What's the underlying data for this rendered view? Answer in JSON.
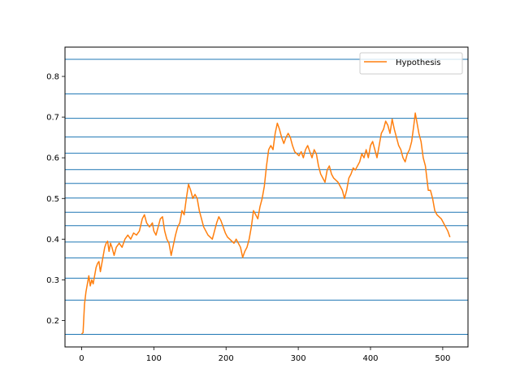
{
  "chart_data": {
    "type": "line",
    "title": "",
    "xlabel": "",
    "ylabel": "",
    "xlim": [
      -23,
      535
    ],
    "ylim": [
      0.135,
      0.872
    ],
    "x_ticks": [
      0,
      100,
      200,
      300,
      400,
      500
    ],
    "x_tick_labels": [
      "0",
      "100",
      "200",
      "300",
      "400",
      "500"
    ],
    "y_ticks": [
      0.2,
      0.3,
      0.4,
      0.5,
      0.6,
      0.7,
      0.8
    ],
    "y_tick_labels": [
      "0.2",
      "0.3",
      "0.4",
      "0.5",
      "0.6",
      "0.7",
      "0.8"
    ],
    "hlines": {
      "color": "#1f77b4",
      "values": [
        0.166,
        0.25,
        0.304,
        0.354,
        0.393,
        0.433,
        0.466,
        0.501,
        0.537,
        0.571,
        0.611,
        0.651,
        0.697,
        0.757,
        0.842
      ]
    },
    "legend": {
      "placement": "top-right",
      "entries": [
        "Hypothesis"
      ]
    },
    "series": [
      {
        "name": "Hypothesis",
        "color": "#ff7f0e",
        "points": [
          [
            0,
            0.167
          ],
          [
            2,
            0.17
          ],
          [
            4,
            0.24
          ],
          [
            6,
            0.27
          ],
          [
            8,
            0.29
          ],
          [
            10,
            0.31
          ],
          [
            12,
            0.285
          ],
          [
            14,
            0.3
          ],
          [
            16,
            0.29
          ],
          [
            18,
            0.31
          ],
          [
            20,
            0.33
          ],
          [
            22,
            0.34
          ],
          [
            24,
            0.345
          ],
          [
            26,
            0.32
          ],
          [
            28,
            0.34
          ],
          [
            30,
            0.36
          ],
          [
            32,
            0.38
          ],
          [
            34,
            0.39
          ],
          [
            36,
            0.395
          ],
          [
            38,
            0.37
          ],
          [
            40,
            0.39
          ],
          [
            42,
            0.38
          ],
          [
            45,
            0.36
          ],
          [
            48,
            0.38
          ],
          [
            52,
            0.39
          ],
          [
            56,
            0.38
          ],
          [
            60,
            0.4
          ],
          [
            64,
            0.41
          ],
          [
            68,
            0.4
          ],
          [
            72,
            0.415
          ],
          [
            76,
            0.41
          ],
          [
            80,
            0.42
          ],
          [
            84,
            0.45
          ],
          [
            87,
            0.46
          ],
          [
            90,
            0.44
          ],
          [
            94,
            0.43
          ],
          [
            98,
            0.44
          ],
          [
            100,
            0.42
          ],
          [
            103,
            0.41
          ],
          [
            106,
            0.43
          ],
          [
            109,
            0.45
          ],
          [
            112,
            0.455
          ],
          [
            115,
            0.42
          ],
          [
            118,
            0.4
          ],
          [
            121,
            0.39
          ],
          [
            124,
            0.36
          ],
          [
            127,
            0.385
          ],
          [
            130,
            0.41
          ],
          [
            133,
            0.43
          ],
          [
            136,
            0.44
          ],
          [
            139,
            0.47
          ],
          [
            142,
            0.46
          ],
          [
            145,
            0.5
          ],
          [
            148,
            0.535
          ],
          [
            151,
            0.52
          ],
          [
            154,
            0.5
          ],
          [
            157,
            0.51
          ],
          [
            160,
            0.5
          ],
          [
            163,
            0.47
          ],
          [
            166,
            0.45
          ],
          [
            169,
            0.43
          ],
          [
            172,
            0.42
          ],
          [
            175,
            0.41
          ],
          [
            178,
            0.405
          ],
          [
            181,
            0.4
          ],
          [
            184,
            0.42
          ],
          [
            187,
            0.44
          ],
          [
            190,
            0.455
          ],
          [
            193,
            0.445
          ],
          [
            196,
            0.43
          ],
          [
            199,
            0.415
          ],
          [
            202,
            0.405
          ],
          [
            205,
            0.4
          ],
          [
            208,
            0.395
          ],
          [
            211,
            0.39
          ],
          [
            214,
            0.4
          ],
          [
            217,
            0.39
          ],
          [
            220,
            0.38
          ],
          [
            223,
            0.355
          ],
          [
            226,
            0.37
          ],
          [
            229,
            0.38
          ],
          [
            232,
            0.4
          ],
          [
            235,
            0.43
          ],
          [
            238,
            0.47
          ],
          [
            241,
            0.46
          ],
          [
            244,
            0.45
          ],
          [
            247,
            0.48
          ],
          [
            250,
            0.5
          ],
          [
            253,
            0.53
          ],
          [
            256,
            0.58
          ],
          [
            259,
            0.62
          ],
          [
            262,
            0.63
          ],
          [
            265,
            0.62
          ],
          [
            268,
            0.66
          ],
          [
            271,
            0.685
          ],
          [
            274,
            0.67
          ],
          [
            277,
            0.65
          ],
          [
            280,
            0.635
          ],
          [
            283,
            0.65
          ],
          [
            286,
            0.66
          ],
          [
            289,
            0.65
          ],
          [
            292,
            0.63
          ],
          [
            295,
            0.615
          ],
          [
            298,
            0.61
          ],
          [
            301,
            0.605
          ],
          [
            304,
            0.615
          ],
          [
            307,
            0.6
          ],
          [
            310,
            0.62
          ],
          [
            313,
            0.63
          ],
          [
            316,
            0.615
          ],
          [
            319,
            0.6
          ],
          [
            322,
            0.62
          ],
          [
            325,
            0.61
          ],
          [
            328,
            0.58
          ],
          [
            331,
            0.56
          ],
          [
            334,
            0.55
          ],
          [
            337,
            0.54
          ],
          [
            340,
            0.57
          ],
          [
            343,
            0.58
          ],
          [
            346,
            0.56
          ],
          [
            349,
            0.55
          ],
          [
            352,
            0.545
          ],
          [
            355,
            0.54
          ],
          [
            358,
            0.53
          ],
          [
            361,
            0.52
          ],
          [
            364,
            0.5
          ],
          [
            367,
            0.52
          ],
          [
            370,
            0.55
          ],
          [
            373,
            0.56
          ],
          [
            376,
            0.575
          ],
          [
            379,
            0.57
          ],
          [
            382,
            0.58
          ],
          [
            385,
            0.59
          ],
          [
            388,
            0.61
          ],
          [
            391,
            0.6
          ],
          [
            394,
            0.62
          ],
          [
            397,
            0.6
          ],
          [
            400,
            0.63
          ],
          [
            403,
            0.64
          ],
          [
            406,
            0.62
          ],
          [
            409,
            0.6
          ],
          [
            412,
            0.63
          ],
          [
            415,
            0.66
          ],
          [
            418,
            0.67
          ],
          [
            421,
            0.69
          ],
          [
            424,
            0.68
          ],
          [
            427,
            0.66
          ],
          [
            430,
            0.695
          ],
          [
            433,
            0.67
          ],
          [
            436,
            0.65
          ],
          [
            439,
            0.63
          ],
          [
            442,
            0.62
          ],
          [
            445,
            0.6
          ],
          [
            448,
            0.59
          ],
          [
            451,
            0.61
          ],
          [
            454,
            0.62
          ],
          [
            457,
            0.64
          ],
          [
            460,
            0.68
          ],
          [
            462,
            0.71
          ],
          [
            464,
            0.69
          ],
          [
            467,
            0.66
          ],
          [
            470,
            0.64
          ],
          [
            473,
            0.6
          ],
          [
            476,
            0.58
          ],
          [
            478,
            0.55
          ],
          [
            480,
            0.52
          ],
          [
            483,
            0.52
          ],
          [
            486,
            0.5
          ],
          [
            489,
            0.47
          ],
          [
            492,
            0.46
          ],
          [
            495,
            0.455
          ],
          [
            498,
            0.45
          ],
          [
            501,
            0.44
          ],
          [
            504,
            0.43
          ],
          [
            507,
            0.42
          ],
          [
            510,
            0.405
          ]
        ]
      }
    ]
  }
}
